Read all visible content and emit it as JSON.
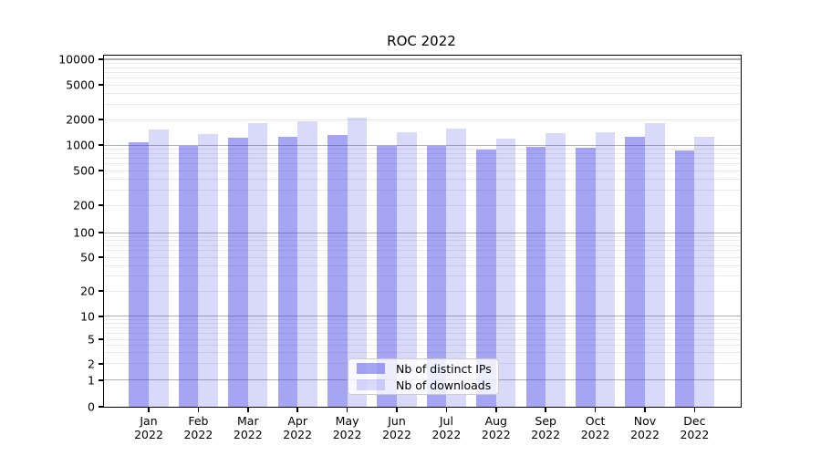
{
  "title": "ROC 2022",
  "chart_data": {
    "type": "bar",
    "title": "ROC 2022",
    "yscale": "symlog",
    "grid": true,
    "legend_position": "lower center",
    "categories": [
      "Jan",
      "Feb",
      "Mar",
      "Apr",
      "May",
      "Jun",
      "Jul",
      "Aug",
      "Sep",
      "Oct",
      "Nov",
      "Dec"
    ],
    "category_year": "2022",
    "yticks": [
      0,
      1,
      2,
      5,
      10,
      20,
      50,
      100,
      200,
      500,
      1000,
      2000,
      5000,
      10000
    ],
    "ylim": [
      0,
      10000
    ],
    "series": [
      {
        "name": "Nb of distinct IPs",
        "color": "#3333e6",
        "alpha": 0.44,
        "values": [
          1080,
          990,
          1230,
          1245,
          1320,
          990,
          975,
          880,
          970,
          940,
          1270,
          860
        ]
      },
      {
        "name": "Nb of downloads",
        "color": "#3333e6",
        "alpha": 0.19,
        "values": [
          1530,
          1350,
          1830,
          1900,
          2100,
          1410,
          1580,
          1200,
          1380,
          1430,
          1810,
          1250
        ]
      }
    ],
    "colors": {
      "bar_dark_rendered": "#a5a5f4",
      "bar_light_rendered": "#d8d8fa",
      "grid_major": "#b0b0b0",
      "grid_minor": "#e9e9e9",
      "axis": "#000000"
    }
  }
}
